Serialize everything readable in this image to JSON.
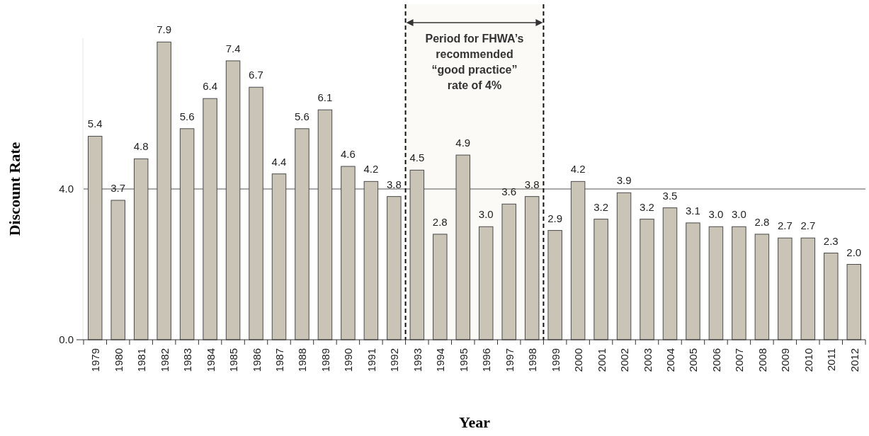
{
  "chart_data": {
    "type": "bar",
    "xlabel": "Year",
    "ylabel": "Discount Rate",
    "categories": [
      "1979",
      "1980",
      "1981",
      "1982",
      "1983",
      "1984",
      "1985",
      "1986",
      "1987",
      "1988",
      "1989",
      "1990",
      "1991",
      "1992",
      "1993",
      "1994",
      "1995",
      "1996",
      "1997",
      "1998",
      "1999",
      "2000",
      "2001",
      "2002",
      "2003",
      "2004",
      "2005",
      "2006",
      "2007",
      "2008",
      "2009",
      "2010",
      "2011",
      "2012"
    ],
    "values": [
      5.4,
      3.7,
      4.8,
      7.9,
      5.6,
      6.4,
      7.4,
      6.7,
      4.4,
      5.6,
      6.1,
      4.6,
      4.2,
      3.8,
      4.5,
      2.8,
      4.9,
      3.0,
      3.6,
      3.8,
      2.9,
      4.2,
      3.2,
      3.9,
      3.2,
      3.5,
      3.1,
      3.0,
      3.0,
      2.8,
      2.7,
      2.7,
      2.3,
      2.0
    ],
    "value_labels": [
      "5.4",
      "3.7",
      "4.8",
      "7.9",
      "5.6",
      "6.4",
      "7.4",
      "6.7",
      "4.4",
      "5.6",
      "6.1",
      "4.6",
      "4.2",
      "3.8",
      "4.5",
      "2.8",
      "4.9",
      "3.0",
      "3.6",
      "3.8",
      "2.9",
      "4.2",
      "3.2",
      "3.9",
      "3.2",
      "3.5",
      "3.1",
      "3.0",
      "3.0",
      "2.8",
      "2.7",
      "2.7",
      "2.3",
      "2.0"
    ],
    "color": "#c9c4b6",
    "ylim": [
      0,
      8
    ],
    "yticks": [
      {
        "value": 0,
        "label": "0.0"
      },
      {
        "value": 4,
        "label": "4.0"
      }
    ],
    "ref_lines": [
      {
        "axis": "y",
        "value": 4,
        "color": "#555555"
      }
    ],
    "bands": [
      {
        "axis": "x",
        "from": "1993",
        "to": "1998",
        "label": "Period for FHWA’s recommended “good practice” rate of 4%"
      }
    ]
  }
}
